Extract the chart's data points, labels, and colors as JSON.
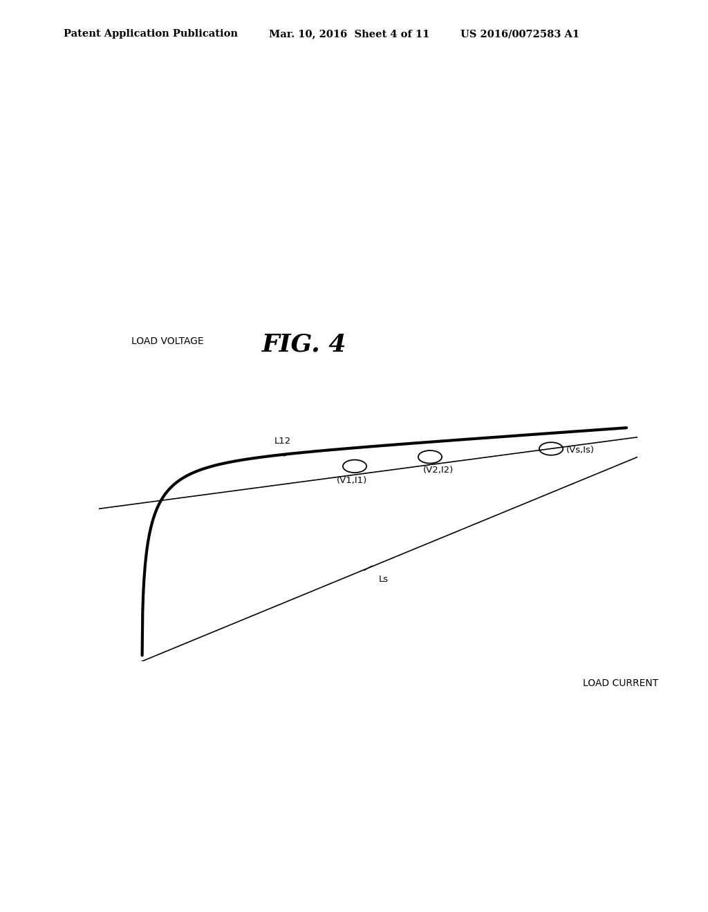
{
  "title": "FIG. 4",
  "header_left": "Patent Application Publication",
  "header_center": "Mar. 10, 2016  Sheet 4 of 11",
  "header_right": "US 2016/0072583 A1",
  "xlabel": "LOAD CURRENT",
  "ylabel": "LOAD VOLTAGE",
  "background_color": "#ffffff",
  "title_fontsize": 26,
  "label_fontsize": 10,
  "header_fontsize": 10.5,
  "annot_fontsize": 9.5
}
